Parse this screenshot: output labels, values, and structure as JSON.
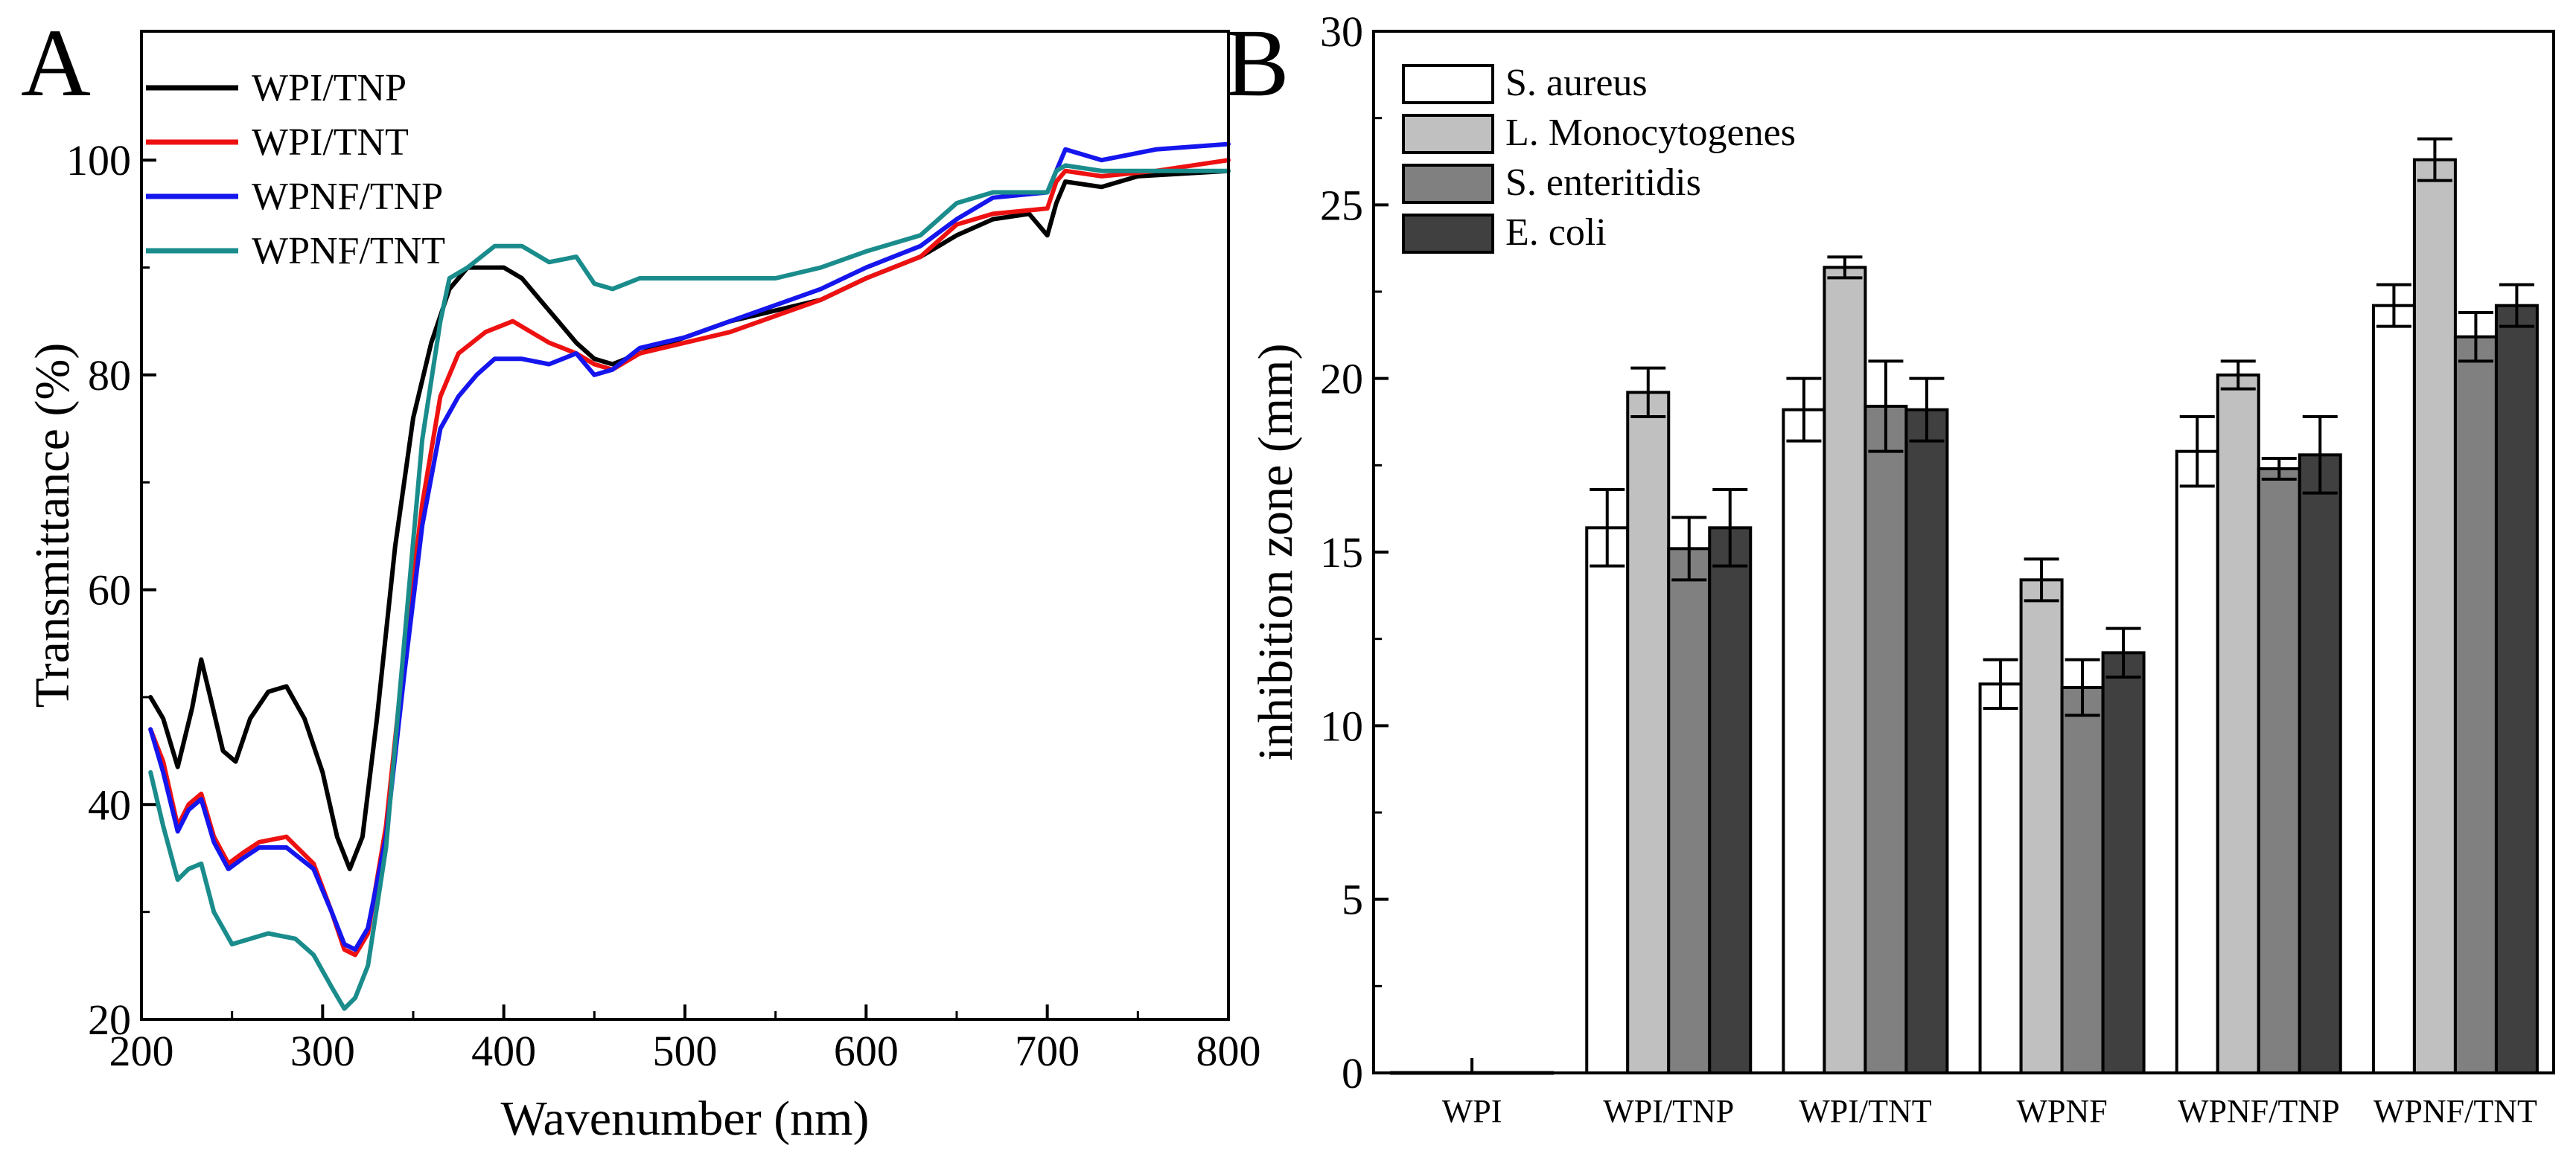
{
  "chart_data": [
    {
      "panel": "A",
      "type": "line",
      "xlabel": "Wavenumber (nm)",
      "ylabel": "Transmittance (%)",
      "xlim": [
        200,
        800
      ],
      "ylim": [
        20,
        112
      ],
      "xticks": [
        200,
        300,
        400,
        500,
        600,
        700,
        800
      ],
      "yticks": [
        20,
        40,
        60,
        80,
        100
      ],
      "legend_position": "top-left",
      "series": [
        {
          "name": "WPI/TNP",
          "color": "#000000",
          "points": [
            [
              205,
              50
            ],
            [
              212,
              48
            ],
            [
              220,
              43.5
            ],
            [
              228,
              49
            ],
            [
              233,
              53.5
            ],
            [
              238,
              50
            ],
            [
              245,
              45
            ],
            [
              252,
              44
            ],
            [
              260,
              48
            ],
            [
              270,
              50.5
            ],
            [
              280,
              51
            ],
            [
              290,
              48
            ],
            [
              300,
              43
            ],
            [
              308,
              37
            ],
            [
              315,
              34
            ],
            [
              322,
              37
            ],
            [
              330,
              48
            ],
            [
              340,
              64
            ],
            [
              350,
              76
            ],
            [
              360,
              83
            ],
            [
              370,
              88
            ],
            [
              380,
              90
            ],
            [
              400,
              90
            ],
            [
              410,
              89
            ],
            [
              420,
              87
            ],
            [
              430,
              85
            ],
            [
              440,
              83
            ],
            [
              450,
              81.5
            ],
            [
              460,
              81
            ],
            [
              475,
              82
            ],
            [
              500,
              83.5
            ],
            [
              525,
              85
            ],
            [
              550,
              86
            ],
            [
              575,
              87
            ],
            [
              600,
              89
            ],
            [
              630,
              91
            ],
            [
              650,
              93
            ],
            [
              670,
              94.5
            ],
            [
              690,
              95
            ],
            [
              700,
              93
            ],
            [
              705,
              96
            ],
            [
              710,
              98
            ],
            [
              730,
              97.5
            ],
            [
              750,
              98.5
            ],
            [
              800,
              99
            ]
          ]
        },
        {
          "name": "WPI/TNT",
          "color": "#ee1111",
          "points": [
            [
              205,
              47
            ],
            [
              212,
              44
            ],
            [
              220,
              38
            ],
            [
              226,
              40
            ],
            [
              233,
              41
            ],
            [
              240,
              37
            ],
            [
              248,
              34.5
            ],
            [
              256,
              35.5
            ],
            [
              265,
              36.5
            ],
            [
              280,
              37
            ],
            [
              295,
              34.5
            ],
            [
              305,
              30
            ],
            [
              312,
              26.5
            ],
            [
              318,
              26
            ],
            [
              325,
              28
            ],
            [
              335,
              38
            ],
            [
              345,
              54
            ],
            [
              355,
              68
            ],
            [
              365,
              78
            ],
            [
              375,
              82
            ],
            [
              390,
              84
            ],
            [
              405,
              85
            ],
            [
              415,
              84
            ],
            [
              425,
              83
            ],
            [
              440,
              82
            ],
            [
              450,
              81
            ],
            [
              460,
              80.5
            ],
            [
              475,
              82
            ],
            [
              500,
              83
            ],
            [
              525,
              84
            ],
            [
              550,
              85.5
            ],
            [
              575,
              87
            ],
            [
              600,
              89
            ],
            [
              630,
              91
            ],
            [
              650,
              94
            ],
            [
              670,
              95
            ],
            [
              700,
              95.5
            ],
            [
              705,
              98
            ],
            [
              710,
              99
            ],
            [
              730,
              98.5
            ],
            [
              760,
              99
            ],
            [
              800,
              100
            ]
          ]
        },
        {
          "name": "WPNF/TNP",
          "color": "#1515ee",
          "points": [
            [
              205,
              47
            ],
            [
              212,
              43
            ],
            [
              220,
              37.5
            ],
            [
              226,
              39.5
            ],
            [
              233,
              40.5
            ],
            [
              240,
              36.5
            ],
            [
              248,
              34
            ],
            [
              256,
              35
            ],
            [
              265,
              36
            ],
            [
              280,
              36
            ],
            [
              295,
              34
            ],
            [
              305,
              30
            ],
            [
              312,
              27
            ],
            [
              318,
              26.5
            ],
            [
              325,
              28.5
            ],
            [
              335,
              37
            ],
            [
              345,
              52
            ],
            [
              355,
              66
            ],
            [
              365,
              75
            ],
            [
              375,
              78
            ],
            [
              385,
              80
            ],
            [
              395,
              81.5
            ],
            [
              410,
              81.5
            ],
            [
              425,
              81
            ],
            [
              440,
              82
            ],
            [
              450,
              80
            ],
            [
              460,
              80.5
            ],
            [
              475,
              82.5
            ],
            [
              500,
              83.5
            ],
            [
              525,
              85
            ],
            [
              550,
              86.5
            ],
            [
              575,
              88
            ],
            [
              600,
              90
            ],
            [
              630,
              92
            ],
            [
              650,
              94.5
            ],
            [
              670,
              96.5
            ],
            [
              700,
              97
            ],
            [
              705,
              99
            ],
            [
              710,
              101
            ],
            [
              730,
              100
            ],
            [
              760,
              101
            ],
            [
              800,
              101.5
            ]
          ]
        },
        {
          "name": "WPNF/TNT",
          "color": "#1a8c8c",
          "points": [
            [
              205,
              43
            ],
            [
              212,
              38
            ],
            [
              220,
              33
            ],
            [
              226,
              34
            ],
            [
              233,
              34.5
            ],
            [
              240,
              30
            ],
            [
              250,
              27
            ],
            [
              260,
              27.5
            ],
            [
              270,
              28
            ],
            [
              285,
              27.5
            ],
            [
              295,
              26
            ],
            [
              305,
              23
            ],
            [
              312,
              21
            ],
            [
              318,
              22
            ],
            [
              325,
              25
            ],
            [
              335,
              36
            ],
            [
              345,
              55
            ],
            [
              355,
              74
            ],
            [
              365,
              85
            ],
            [
              370,
              89
            ],
            [
              380,
              90
            ],
            [
              395,
              92
            ],
            [
              410,
              92
            ],
            [
              425,
              90.5
            ],
            [
              440,
              91
            ],
            [
              450,
              88.5
            ],
            [
              460,
              88
            ],
            [
              475,
              89
            ],
            [
              500,
              89
            ],
            [
              525,
              89
            ],
            [
              550,
              89
            ],
            [
              575,
              90
            ],
            [
              600,
              91.5
            ],
            [
              630,
              93
            ],
            [
              650,
              96
            ],
            [
              670,
              97
            ],
            [
              700,
              97
            ],
            [
              705,
              99
            ],
            [
              710,
              99.5
            ],
            [
              730,
              99
            ],
            [
              760,
              99
            ],
            [
              800,
              99
            ]
          ]
        }
      ]
    },
    {
      "panel": "B",
      "type": "bar",
      "ylabel": "inhibition zone (mm)",
      "ylim": [
        0,
        30
      ],
      "yticks": [
        0,
        5,
        10,
        15,
        20,
        25,
        30
      ],
      "legend_position": "top-left",
      "categories": [
        "WPI",
        "WPI/TNP",
        "WPI/TNT",
        "WPNF",
        "WPNF/TNP",
        "WPNF/TNT"
      ],
      "series": [
        {
          "name": "S. aureus",
          "color": "#ffffff",
          "values": [
            0,
            15.7,
            19.1,
            11.2,
            17.9,
            22.1
          ],
          "errors": [
            0,
            1.1,
            0.9,
            0.7,
            1.0,
            0.6
          ]
        },
        {
          "name": "L. Monocytogenes",
          "color": "#c0c0c0",
          "values": [
            0,
            19.6,
            23.2,
            14.2,
            20.1,
            26.3
          ],
          "errors": [
            0,
            0.7,
            0.3,
            0.6,
            0.4,
            0.6
          ]
        },
        {
          "name": "S. enteritidis",
          "color": "#808080",
          "values": [
            0,
            15.1,
            19.2,
            11.1,
            17.4,
            21.2
          ],
          "errors": [
            0,
            0.9,
            1.3,
            0.8,
            0.3,
            0.7
          ]
        },
        {
          "name": "E. coli",
          "color": "#404040",
          "values": [
            0,
            15.7,
            19.1,
            12.1,
            17.8,
            22.1
          ],
          "errors": [
            0,
            1.1,
            0.9,
            0.7,
            1.1,
            0.6
          ]
        }
      ]
    }
  ]
}
